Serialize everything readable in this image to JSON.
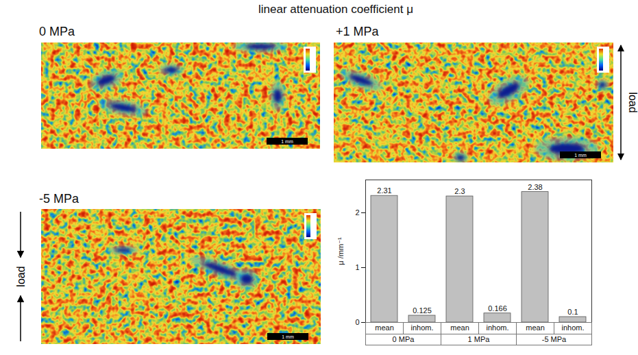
{
  "title": "linear attenuation coefficient μ",
  "panels": [
    {
      "label": "0 MPa",
      "scale_bar": "1 mm"
    },
    {
      "label": "+1 MPa",
      "scale_bar": "1 mm",
      "load": "load"
    },
    {
      "label": "-5 MPa",
      "scale_bar": "1 mm",
      "load": "load"
    }
  ],
  "chart_data": {
    "type": "bar",
    "categories": [
      "mean",
      "inhom.",
      "mean",
      "inhom.",
      "mean",
      "inhom."
    ],
    "groups": [
      "0 MPa",
      "1 MPa",
      "-5 MPa"
    ],
    "values": [
      2.31,
      0.125,
      2.3,
      0.166,
      2.38,
      0.1
    ],
    "color": "#c0c0c0",
    "ylabel": "μ /mm⁻¹",
    "ylim": [
      0,
      2.6
    ],
    "yticks": [
      0,
      1,
      2
    ],
    "data_labels": true
  }
}
